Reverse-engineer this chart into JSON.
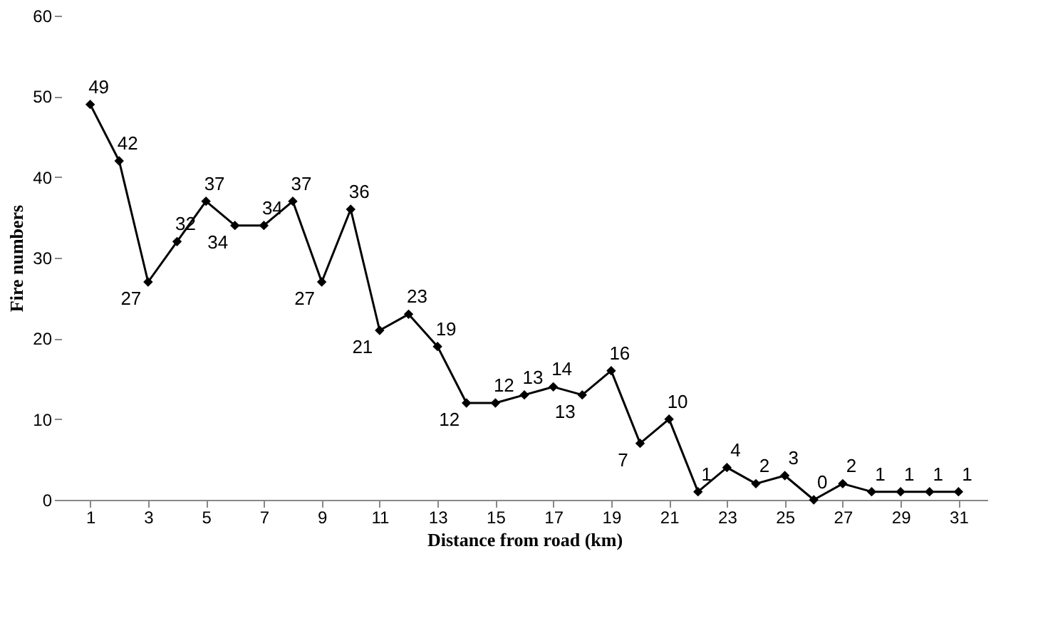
{
  "chart_data": {
    "type": "line",
    "xlabel": "Distance from road (km)",
    "ylabel": "Fire numbers",
    "x": [
      1,
      2,
      3,
      4,
      5,
      6,
      7,
      8,
      9,
      10,
      11,
      12,
      13,
      14,
      15,
      16,
      17,
      18,
      19,
      20,
      21,
      22,
      23,
      24,
      25,
      26,
      27,
      28,
      29,
      30,
      31
    ],
    "series": [
      {
        "color": "#000000",
        "values": [
          49,
          42,
          27,
          32,
          37,
          34,
          34,
          37,
          27,
          36,
          21,
          23,
          19,
          12,
          12,
          13,
          14,
          13,
          16,
          7,
          10,
          1,
          4,
          2,
          3,
          0,
          2,
          1,
          1,
          1,
          1
        ]
      }
    ],
    "xlim": [
      0,
      32
    ],
    "xticks": [
      1,
      3,
      5,
      7,
      9,
      11,
      13,
      15,
      17,
      19,
      21,
      23,
      25,
      27,
      29,
      31
    ],
    "ylim": [
      0,
      60
    ],
    "yticks": [
      0,
      10,
      20,
      30,
      40,
      50,
      60
    ],
    "grid": false,
    "marker": "diamond",
    "line_style": "solid",
    "data_labels": true
  }
}
